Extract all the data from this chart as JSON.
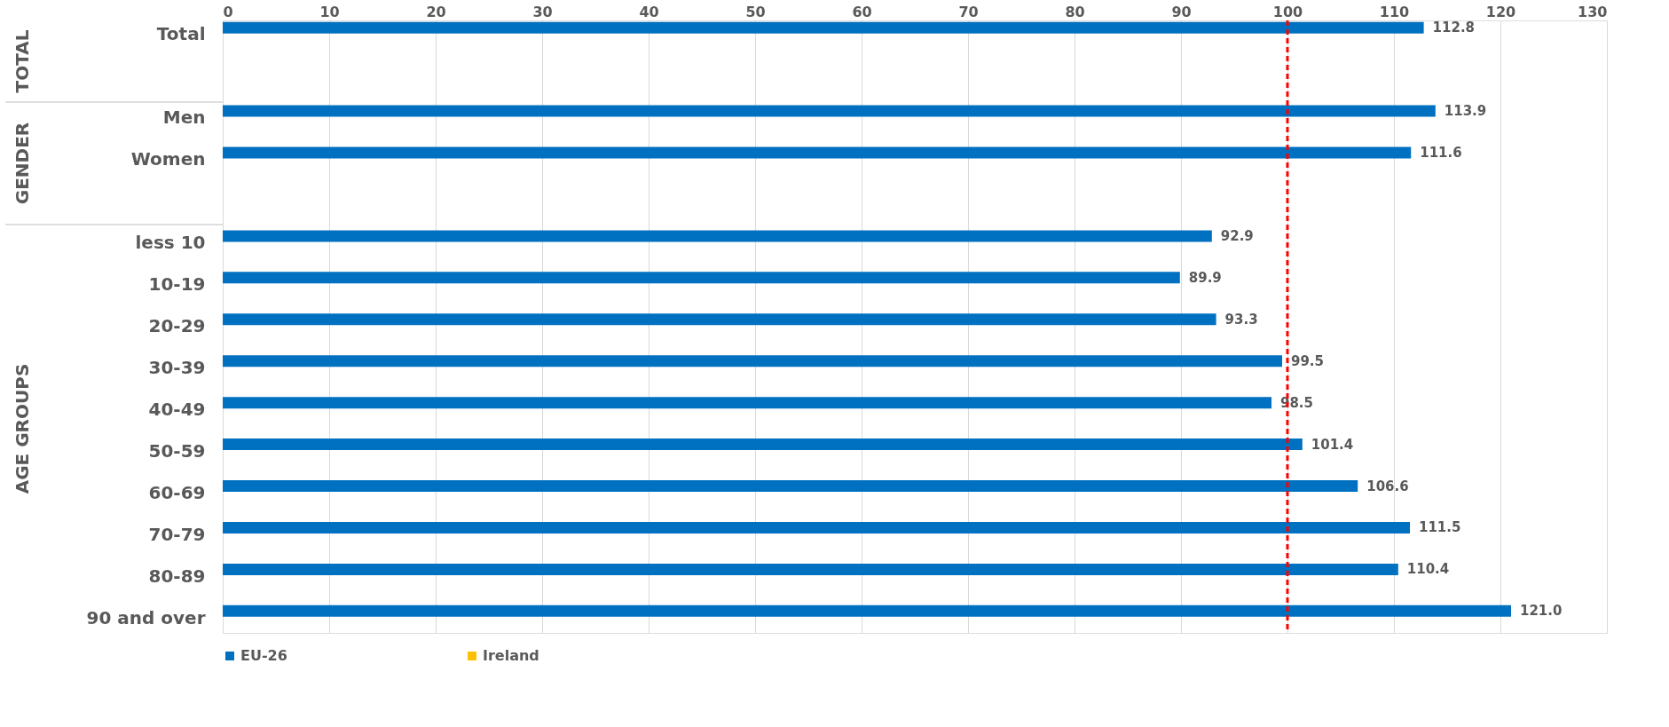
{
  "chart_data": {
    "type": "bar",
    "orientation": "horizontal",
    "categories": [
      "Total",
      null,
      "Men",
      "Women",
      null,
      "less 10",
      "10-19",
      "20-29",
      "30-39",
      "40-49",
      "50-59",
      "60-69",
      "70-79",
      "80-89",
      "90 and over"
    ],
    "series": [
      {
        "name": "EU-26",
        "color": "#0070c0",
        "values": [
          112.8,
          null,
          113.9,
          111.6,
          null,
          92.9,
          89.9,
          93.3,
          99.5,
          98.5,
          101.4,
          106.6,
          111.5,
          110.4,
          121.0
        ]
      },
      {
        "name": "Ireland",
        "color": "#ffc000",
        "values": [
          null,
          null,
          null,
          null,
          null,
          null,
          null,
          null,
          null,
          null,
          null,
          null,
          null,
          null,
          null
        ]
      }
    ],
    "xlim": [
      0,
      130
    ],
    "xticks": [
      0,
      10,
      20,
      30,
      40,
      50,
      60,
      70,
      80,
      90,
      100,
      110,
      120,
      130
    ],
    "grid": "x",
    "legend": "bottom",
    "value_labels": [
      "112.8",
      null,
      "113.9",
      "111.6",
      null,
      "92.9",
      "89.9",
      "93.3",
      "99.5",
      "98.5",
      "101.4",
      "106.6",
      "111.5",
      "110.4",
      "121.0"
    ],
    "ref_lines": [
      {
        "axis": "x",
        "value": 100,
        "label": null,
        "color": "#ff0000",
        "line_style": "dashed"
      }
    ],
    "annotations": [
      "TOTAL",
      "GENDER",
      "AGE GROUPS"
    ]
  }
}
